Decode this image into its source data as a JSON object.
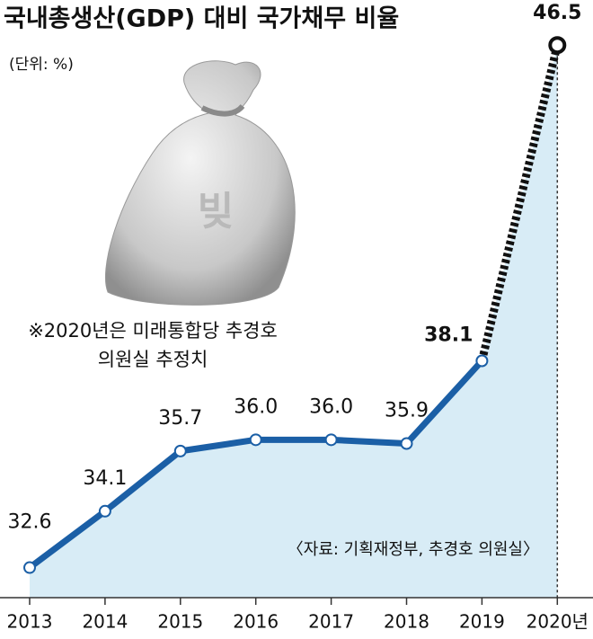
{
  "chart_data": {
    "type": "line",
    "title": "국내총생산(GDP) 대비 국가채무 비율",
    "subtitle": "(단위: %)",
    "note": "※2020년은 미래통합당 추경호 의원실 추정치",
    "source": "〈자료: 기획재정부, 추경호 의원실〉",
    "illustration_label": "빚",
    "categories": [
      "2013",
      "2014",
      "2015",
      "2016",
      "2017",
      "2018",
      "2019",
      "2020년"
    ],
    "values": [
      32.6,
      34.1,
      35.7,
      36.0,
      36.0,
      35.9,
      38.1,
      46.5
    ],
    "value_labels": [
      "32.6",
      "34.1",
      "35.7",
      "36.0",
      "36.0",
      "35.9",
      "38.1",
      "46.5"
    ],
    "color": "#1b5fa6",
    "area_color": "#d8ecf6",
    "dashed_last_segment": true,
    "ylim": [
      31.8,
      47.7
    ]
  }
}
